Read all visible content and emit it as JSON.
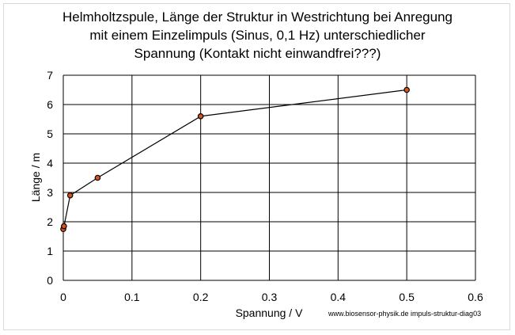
{
  "chart_data": {
    "type": "scatter",
    "title_lines": [
      "Helmholtzspule, Länge der Struktur in Westrichtung bei Anregung",
      "mit einem Einzelimpuls (Sinus, 0,1 Hz) unterschiedlicher",
      "Spannung  (Kontakt nicht einwandfrei???)"
    ],
    "xlabel": "Spannung / V",
    "ylabel": "Länge / m",
    "xlim": [
      0,
      0.6
    ],
    "ylim": [
      0,
      7
    ],
    "x_ticks": [
      "0",
      "0.1",
      "0.2",
      "0.3",
      "0.4",
      "0.5",
      "0.6"
    ],
    "y_ticks": [
      "0",
      "1",
      "2",
      "3",
      "4",
      "5",
      "6",
      "7"
    ],
    "grid": true,
    "series": [
      {
        "points": [
          {
            "x": 0.0,
            "y": 1.75
          },
          {
            "x": 0.001,
            "y": 1.85
          },
          {
            "x": 0.01,
            "y": 2.9
          },
          {
            "x": 0.05,
            "y": 3.5
          },
          {
            "x": 0.2,
            "y": 5.6
          },
          {
            "x": 0.5,
            "y": 6.5
          }
        ],
        "line_color": "#000000",
        "marker_color": "#d9531e"
      }
    ],
    "credit": "www.biosensor-physik.de   impuls-struktur-diag03"
  }
}
